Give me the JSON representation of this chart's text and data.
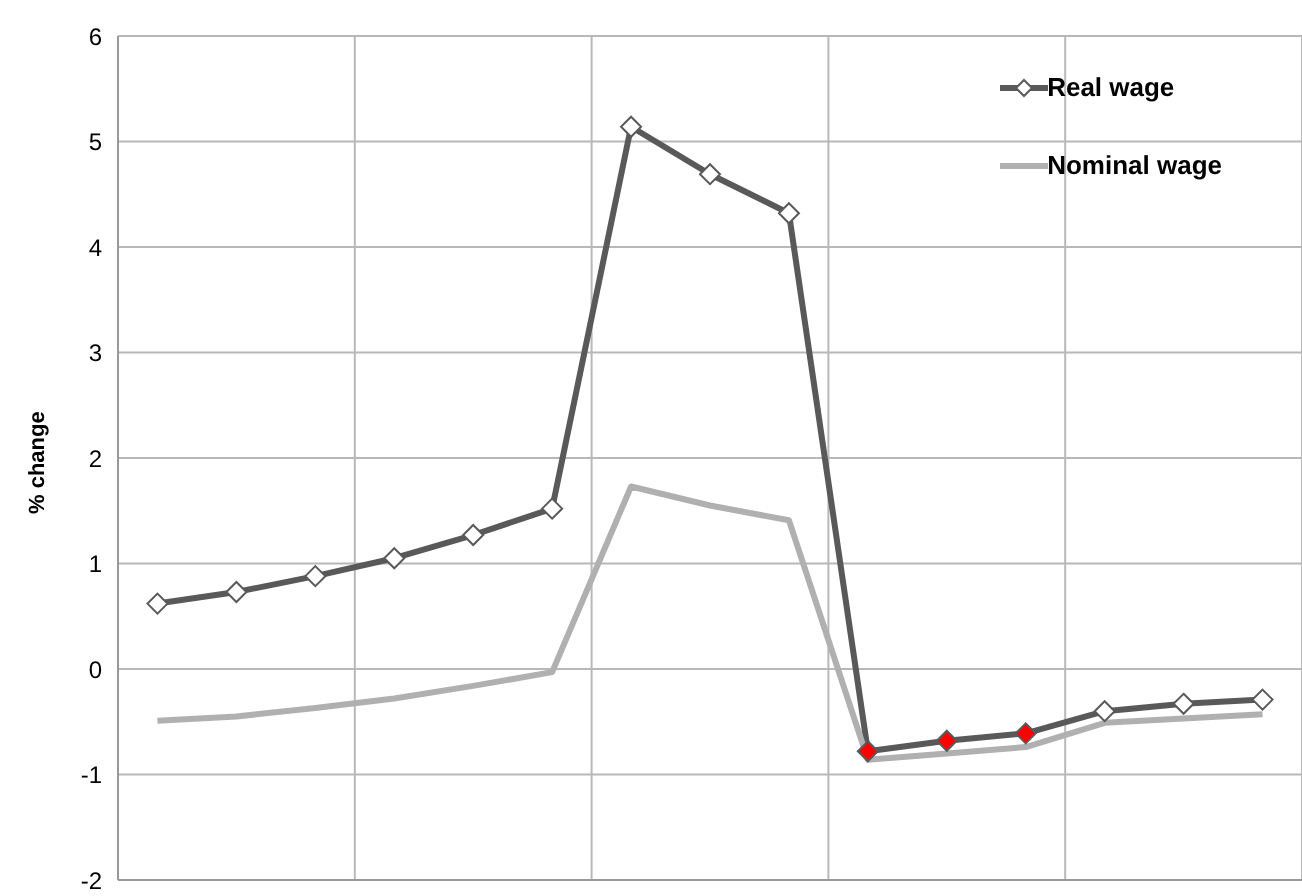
{
  "chart_data": {
    "type": "line",
    "ylabel": "% change",
    "categories": [
      null,
      null,
      null,
      null,
      null,
      null,
      null,
      null,
      null,
      null,
      null,
      null,
      null,
      null,
      null
    ],
    "series": [
      {
        "name": "Real wage",
        "color": "#595959",
        "marker": "diamond",
        "colors": [
          "#ffffff",
          "#ffffff",
          "#ffffff",
          "#ffffff",
          "#ffffff",
          "#ffffff",
          "#ffffff",
          "#ffffff",
          "#ffffff",
          "#ff0000",
          "#ff0000",
          "#ff0000",
          "#ffffff",
          "#ffffff",
          "#ffffff"
        ],
        "values": [
          0.62,
          0.73,
          0.88,
          1.05,
          1.27,
          1.52,
          5.14,
          4.69,
          4.32,
          -0.78,
          -0.68,
          -0.61,
          -0.4,
          -0.33,
          -0.29
        ]
      },
      {
        "name": "Nominal wage",
        "color": "#b0b0b0",
        "marker": "none",
        "values": [
          -0.49,
          -0.45,
          -0.37,
          -0.28,
          -0.16,
          -0.03,
          1.73,
          1.55,
          1.41,
          -0.86,
          -0.8,
          -0.74,
          -0.51,
          -0.47,
          -0.43
        ]
      }
    ],
    "ylim": [
      -2,
      6
    ],
    "yticks": [
      -2,
      -1,
      0,
      1,
      2,
      3,
      4,
      5,
      6
    ],
    "grid": true,
    "legend": "top right",
    "tick_labels": "y",
    "line_style": "solid"
  }
}
